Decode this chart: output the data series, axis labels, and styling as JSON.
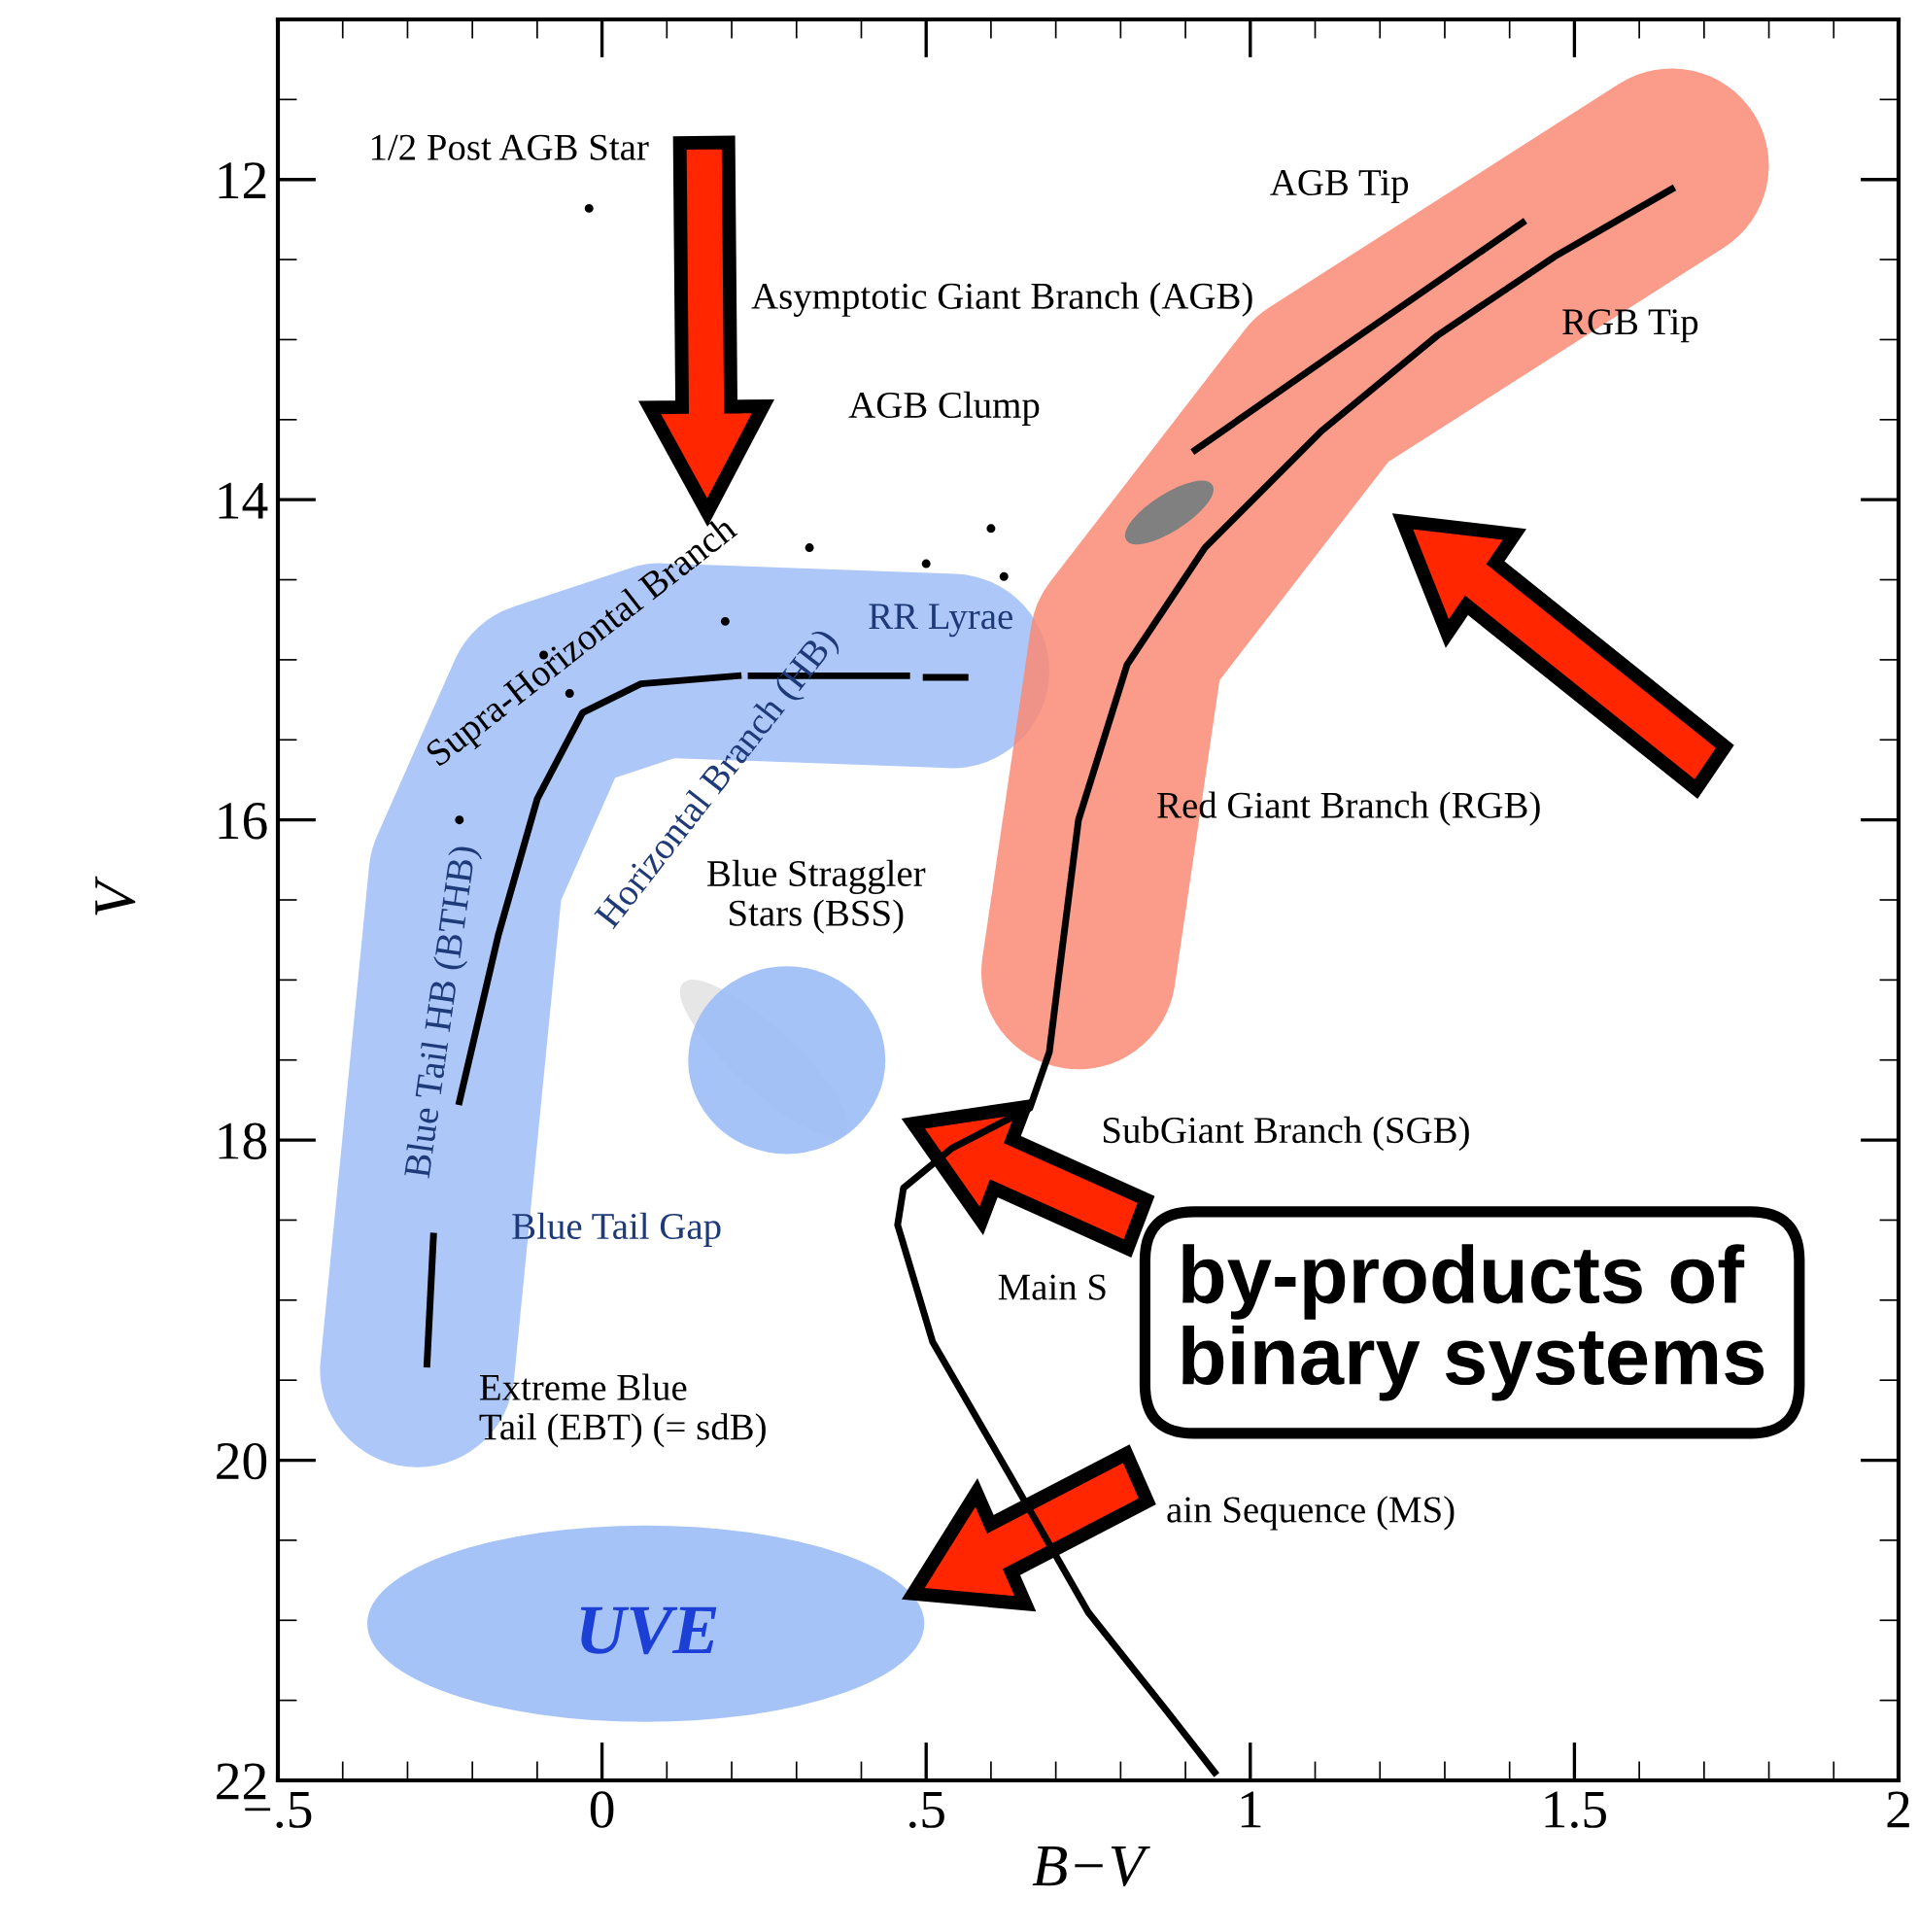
{
  "chart_data": {
    "type": "line",
    "xlabel": "B−V",
    "ylabel": "V",
    "xlim": [
      -0.5,
      2
    ],
    "ylim": [
      22,
      11.0
    ],
    "xticks": [
      {
        "value": -0.5,
        "label": "−.5"
      },
      0,
      {
        "value": 0.5,
        "label": ".5"
      },
      1,
      1.5,
      2
    ],
    "yticks": [
      12,
      14,
      16,
      18,
      20,
      22
    ],
    "grid": false,
    "legend": false,
    "line_style": "solid",
    "series": [
      {
        "color": "#000000",
        "x": [
          0.945,
          0.87,
          0.75,
          0.63,
          0.51,
          0.456,
          0.465,
          0.54,
          0.66,
          0.69,
          0.705,
          0.735,
          0.81,
          0.93,
          1.11,
          1.29,
          1.47,
          1.65
        ],
        "values": [
          21.95,
          21.56,
          20.95,
          20.1,
          19.26,
          18.53,
          18.3,
          18.05,
          17.8,
          17.45,
          16.96,
          16.0,
          15.03,
          14.3,
          13.57,
          12.97,
          12.48,
          12.06
        ]
      },
      {
        "color": "#000000",
        "x": [
          0.915,
          1.17,
          1.42
        ],
        "values": [
          13.69,
          12.97,
          12.27
        ]
      },
      {
        "color": "#000000",
        "x": [
          -0.22,
          -0.16,
          -0.1,
          -0.03,
          0.06,
          0.21,
          0.22,
          0.23,
          0.47,
          0.48,
          0.5,
          0.56
        ],
        "values": [
          17.76,
          16.72,
          15.87,
          15.33,
          15.15,
          15.1,
          null,
          15.1,
          15.1,
          null,
          15.11,
          15.11
        ]
      },
      {
        "color": "#000000",
        "x": [
          -0.26,
          -0.27
        ],
        "values": [
          18.6,
          19.4
        ]
      },
      {
        "type": "scatter",
        "color": "#000000",
        "x": [
          -0.02,
          0.32,
          0.5,
          0.6,
          0.62,
          0.19,
          -0.09,
          -0.05,
          -0.22
        ],
        "values": [
          12.18,
          14.3,
          14.4,
          14.18,
          14.48,
          14.76,
          14.97,
          15.21,
          16.0
        ]
      }
    ],
    "annotations": [
      "1/2 Post AGB Star",
      "Asymptotic Giant Branch (AGB)",
      "AGB Tip",
      "RGB Tip",
      "AGB Clump",
      "Supra-Horizontal Branch",
      "RR Lyrae",
      "Horizontal Branch (HB)",
      "Blue Tail HB (BTHB)",
      "Blue Straggler\nStars (BSS)",
      "Red Giant Branch (RGB)",
      "SubGiant Branch (SGB)",
      "Main S",
      "ain Sequence (MS)",
      "Blue Tail Gap",
      "Extreme Blue\nTail (EBT) (= sdB)",
      "UVE",
      "by-products of\nbinary systems"
    ]
  }
}
